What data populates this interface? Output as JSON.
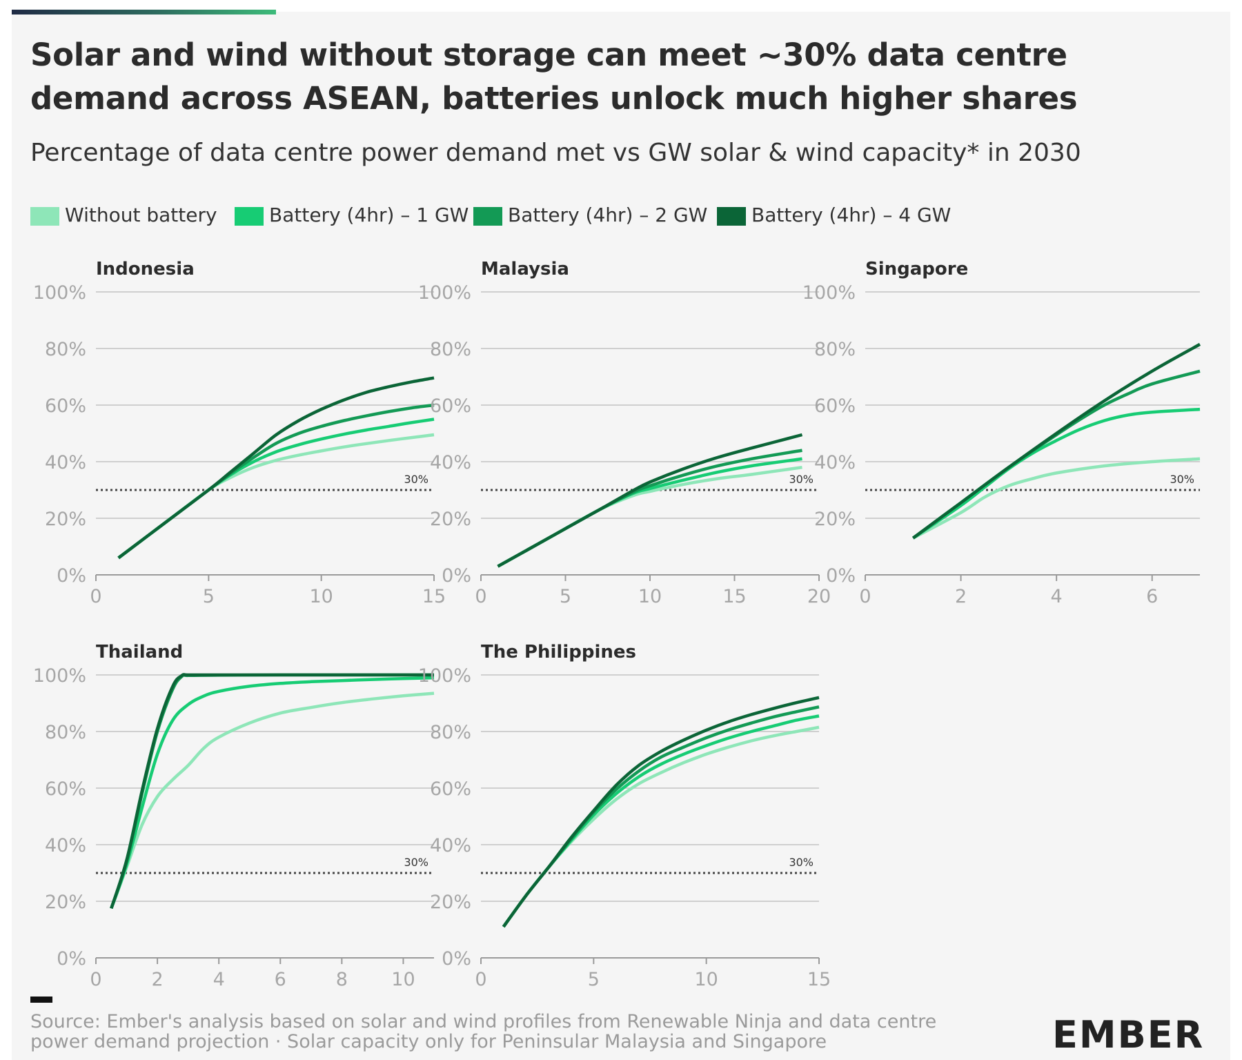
{
  "title": "Solar and wind without storage can meet ~30% data centre demand across ASEAN, batteries unlock much higher shares",
  "subtitle": "Percentage of data centre power demand met vs GW solar & wind capacity* in 2030",
  "source": "Source: Ember's analysis based on solar and wind profiles from Renewable Ninja and data centre power demand projection · Solar capacity only for Peninsular Malaysia and Singapore",
  "brand": "EMBER",
  "colors": {
    "without_battery": "#8ee6b8",
    "battery_1gw": "#17cc74",
    "battery_2gw": "#139a55",
    "battery_4gw": "#0b6537",
    "grid": "#cfcfcf",
    "axis_text": "#a6a6a6",
    "reference": "#444444"
  },
  "legend": [
    {
      "label": "Without battery",
      "color": "#8ee6b8"
    },
    {
      "label": "Battery (4hr) – 1 GW",
      "color": "#17cc74"
    },
    {
      "label": "Battery (4hr) – 2 GW",
      "color": "#139a55"
    },
    {
      "label": "Battery (4hr) – 4 GW",
      "color": "#0b6537"
    }
  ],
  "chart_data": [
    {
      "type": "line",
      "title": "Indonesia",
      "xlim": [
        0,
        15
      ],
      "xticks": [
        "0",
        "5",
        "10",
        "15"
      ],
      "ylim": [
        0,
        100
      ],
      "yticks": [
        "0%",
        "20%",
        "40%",
        "60%",
        "80%",
        "100%"
      ],
      "reference_line": {
        "y": 30,
        "label": "30%"
      },
      "series": [
        {
          "name": "Without battery",
          "x": [
            1,
            3,
            5,
            6,
            7,
            8,
            9,
            10,
            11,
            12,
            13,
            14,
            15
          ],
          "y": [
            6,
            18,
            30,
            34.5,
            38,
            40.5,
            42.3,
            43.8,
            45.2,
            46.4,
            47.5,
            48.5,
            49.5
          ]
        },
        {
          "name": "Battery (4hr) – 1 GW",
          "x": [
            1,
            3,
            5,
            6,
            7,
            8,
            9,
            10,
            11,
            12,
            13,
            14,
            15
          ],
          "y": [
            6,
            18,
            30,
            35.5,
            40,
            43.5,
            46,
            48,
            49.7,
            51.2,
            52.5,
            53.8,
            55
          ]
        },
        {
          "name": "Battery (4hr) – 2 GW",
          "x": [
            1,
            3,
            5,
            6,
            7,
            8,
            9,
            10,
            11,
            12,
            13,
            14,
            15
          ],
          "y": [
            6,
            18,
            30,
            36,
            41.5,
            46.5,
            50,
            52.5,
            54.5,
            56.2,
            57.7,
            59,
            60
          ]
        },
        {
          "name": "Battery (4hr) – 4 GW",
          "x": [
            1,
            3,
            5,
            6,
            7,
            8,
            9,
            10,
            11,
            12,
            13,
            14,
            15
          ],
          "y": [
            6,
            18,
            30,
            36.5,
            43,
            49.5,
            54.5,
            58.5,
            61.8,
            64.5,
            66.5,
            68.2,
            69.6
          ]
        }
      ]
    },
    {
      "type": "line",
      "title": "Malaysia",
      "xlim": [
        0,
        20
      ],
      "xticks": [
        "0",
        "5",
        "10",
        "15",
        "20"
      ],
      "ylim": [
        0,
        100
      ],
      "yticks": [
        "0%",
        "20%",
        "40%",
        "60%",
        "80%",
        "100%"
      ],
      "reference_line": {
        "y": 30,
        "label": "30%"
      },
      "series": [
        {
          "name": "Without battery",
          "x": [
            1,
            4,
            7,
            9,
            10,
            12,
            14,
            16,
            19
          ],
          "y": [
            3,
            13,
            23,
            28,
            29.5,
            32,
            34,
            35.5,
            38
          ]
        },
        {
          "name": "Battery (4hr) – 1 GW",
          "x": [
            1,
            4,
            7,
            9,
            10,
            12,
            14,
            16,
            19
          ],
          "y": [
            3,
            13,
            23,
            28.8,
            30.5,
            33.5,
            36.3,
            38.5,
            41
          ]
        },
        {
          "name": "Battery (4hr) – 2 GW",
          "x": [
            1,
            4,
            7,
            9,
            10,
            12,
            14,
            16,
            19
          ],
          "y": [
            3,
            13,
            23,
            29.2,
            31.5,
            35.3,
            38.5,
            41,
            44
          ]
        },
        {
          "name": "Battery (4hr) – 4 GW",
          "x": [
            1,
            4,
            7,
            9,
            10,
            12,
            14,
            16,
            19
          ],
          "y": [
            3,
            13,
            23,
            29.8,
            32.8,
            37.5,
            41.5,
            44.8,
            49.5
          ]
        }
      ]
    },
    {
      "type": "line",
      "title": "Singapore",
      "xlim": [
        0,
        7
      ],
      "xticks": [
        "0",
        "2",
        "4",
        "6"
      ],
      "ylim": [
        0,
        100
      ],
      "yticks": [
        "0%",
        "20%",
        "40%",
        "60%",
        "80%",
        "100%"
      ],
      "reference_line": {
        "y": 30,
        "label": "30%"
      },
      "series": [
        {
          "name": "Without battery",
          "x": [
            1,
            2,
            2.5,
            3,
            3.5,
            4,
            5,
            6,
            7
          ],
          "y": [
            13,
            22,
            27.5,
            31.5,
            34,
            36,
            38.5,
            40,
            41
          ]
        },
        {
          "name": "Battery (4hr) – 1 GW",
          "x": [
            1,
            2,
            2.5,
            3,
            3.5,
            4,
            4.5,
            5,
            5.5,
            6,
            7
          ],
          "y": [
            13,
            24.5,
            31,
            37.5,
            43,
            47.5,
            51.5,
            54.5,
            56.5,
            57.5,
            58.5
          ]
        },
        {
          "name": "Battery (4hr) – 2 GW",
          "x": [
            1,
            2,
            3,
            4,
            4.5,
            5,
            5.5,
            6,
            7
          ],
          "y": [
            13,
            25.5,
            38,
            49.5,
            55,
            60,
            64,
            67.5,
            72
          ]
        },
        {
          "name": "Battery (4hr) – 4 GW",
          "x": [
            1,
            2,
            3,
            4,
            5,
            6,
            7
          ],
          "y": [
            13,
            25.5,
            38,
            50,
            61.5,
            72,
            81.5
          ]
        }
      ]
    },
    {
      "type": "line",
      "title": "Thailand",
      "xlim": [
        0,
        11
      ],
      "xticks": [
        "0",
        "2",
        "4",
        "6",
        "8",
        "10"
      ],
      "ylim": [
        0,
        100
      ],
      "yticks": [
        "0%",
        "20%",
        "40%",
        "60%",
        "80%",
        "100%"
      ],
      "reference_line": {
        "y": 30,
        "label": "30%"
      },
      "series": [
        {
          "name": "Without battery",
          "x": [
            0.5,
            1,
            1.5,
            2,
            2.5,
            3,
            3.5,
            4,
            5,
            6,
            7,
            8,
            9,
            10,
            11
          ],
          "y": [
            17.5,
            32,
            47,
            57,
            63,
            68,
            74,
            78,
            83,
            86.5,
            88.5,
            90.2,
            91.5,
            92.6,
            93.5
          ]
        },
        {
          "name": "Battery (4hr) – 1 GW",
          "x": [
            0.5,
            1,
            1.5,
            2,
            2.5,
            3,
            3.5,
            4,
            5,
            6,
            7,
            8,
            9,
            10,
            11
          ],
          "y": [
            17.5,
            33,
            53,
            72,
            84,
            89.5,
            92.5,
            94.2,
            96,
            97,
            97.6,
            98,
            98.4,
            98.7,
            99
          ]
        },
        {
          "name": "Battery (4hr) – 2 GW",
          "x": [
            0.5,
            1,
            1.5,
            2,
            2.5,
            2.8,
            3,
            4,
            6,
            8,
            11
          ],
          "y": [
            17.5,
            34,
            58,
            80,
            95,
            99.5,
            99.8,
            99.9,
            100,
            100,
            100
          ]
        },
        {
          "name": "Battery (4hr) – 4 GW",
          "x": [
            0.5,
            1,
            1.5,
            2,
            2.5,
            2.8,
            3,
            4,
            6,
            8,
            11
          ],
          "y": [
            17.5,
            34.5,
            59,
            81,
            96,
            99.8,
            100,
            100,
            100,
            100,
            100
          ]
        }
      ]
    },
    {
      "type": "line",
      "title": "The Philippines",
      "xlim": [
        0,
        15
      ],
      "xticks": [
        "0",
        "5",
        "10",
        "15"
      ],
      "ylim": [
        0,
        100
      ],
      "yticks": [
        "0%",
        "20%",
        "40%",
        "60%",
        "80%",
        "100%"
      ],
      "reference_line": {
        "y": 30,
        "label": "30%"
      },
      "series": [
        {
          "name": "Without battery",
          "x": [
            1,
            2,
            3,
            4,
            5,
            6,
            7,
            8,
            9,
            10,
            11,
            12,
            13,
            14,
            15
          ],
          "y": [
            11,
            22,
            32,
            41,
            49,
            56,
            61.5,
            65.5,
            69,
            72,
            74.5,
            76.7,
            78.5,
            80,
            81.5
          ]
        },
        {
          "name": "Battery (4hr) – 1 GW",
          "x": [
            1,
            2,
            3,
            4,
            5,
            6,
            7,
            8,
            9,
            10,
            11,
            12,
            13,
            14,
            15
          ],
          "y": [
            11,
            22,
            32,
            41.5,
            50.5,
            58,
            64,
            68.5,
            72,
            75,
            77.7,
            80,
            82,
            84,
            85.5
          ]
        },
        {
          "name": "Battery (4hr) – 2 GW",
          "x": [
            1,
            2,
            3,
            4,
            5,
            6,
            7,
            8,
            9,
            10,
            11,
            12,
            13,
            14,
            15
          ],
          "y": [
            11,
            22,
            32,
            42,
            51.5,
            59.5,
            66,
            71,
            74.5,
            77.8,
            80.6,
            83,
            85.2,
            87,
            88.7
          ]
        },
        {
          "name": "Battery (4hr) – 4 GW",
          "x": [
            1,
            2,
            3,
            4,
            5,
            6,
            7,
            8,
            9,
            10,
            11,
            12,
            13,
            14,
            15
          ],
          "y": [
            11,
            22,
            32,
            42.5,
            52,
            61,
            68,
            73,
            77,
            80.5,
            83.5,
            86,
            88.2,
            90.2,
            92
          ]
        }
      ]
    }
  ]
}
